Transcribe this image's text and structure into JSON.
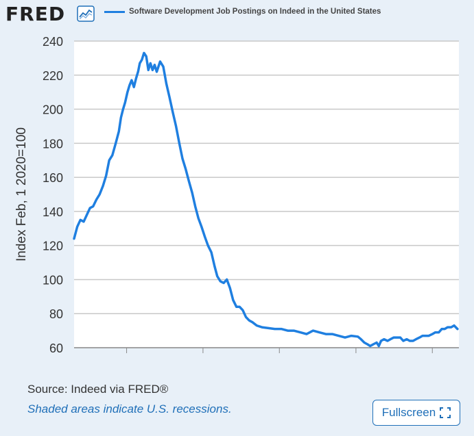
{
  "header": {
    "logo_text": "FRED",
    "graph_icon": "trend-line-icon"
  },
  "colors": {
    "series": "#1f7fe0",
    "background": "#e8f0f8",
    "plot_bg": "#ffffff",
    "grid": "#c8c8c8",
    "link": "#1f6fb8"
  },
  "chart_data": {
    "type": "line",
    "title": "",
    "xlabel": "",
    "ylabel": "Index Feb, 1 2020=100",
    "ylim": [
      60,
      240
    ],
    "yticks": [
      60,
      80,
      100,
      120,
      140,
      160,
      180,
      200,
      220,
      240
    ],
    "xlim": [
      "2021-04-25",
      "2026-05-08"
    ],
    "xticks": [
      "2022",
      "2023",
      "2024",
      "2025",
      "2026"
    ],
    "grid": true,
    "legend_position": "top",
    "series": [
      {
        "name": "Software Development Job Postings on Indeed in the United States",
        "x": [
          "2021-04-25",
          "2021-05-10",
          "2021-05-25",
          "2021-06-10",
          "2021-06-25",
          "2021-07-10",
          "2021-07-25",
          "2021-08-10",
          "2021-08-25",
          "2021-09-10",
          "2021-09-25",
          "2021-10-10",
          "2021-10-25",
          "2021-11-10",
          "2021-11-25",
          "2021-12-05",
          "2021-12-15",
          "2021-12-25",
          "2022-01-05",
          "2022-01-15",
          "2022-01-25",
          "2022-02-05",
          "2022-02-15",
          "2022-02-25",
          "2022-03-05",
          "2022-03-15",
          "2022-03-25",
          "2022-04-05",
          "2022-04-15",
          "2022-04-25",
          "2022-05-05",
          "2022-05-15",
          "2022-05-25",
          "2022-06-10",
          "2022-06-25",
          "2022-07-10",
          "2022-07-25",
          "2022-08-10",
          "2022-08-25",
          "2022-09-10",
          "2022-09-25",
          "2022-10-10",
          "2022-10-25",
          "2022-11-10",
          "2022-11-25",
          "2022-12-10",
          "2022-12-25",
          "2023-01-10",
          "2023-01-25",
          "2023-02-10",
          "2023-02-25",
          "2023-03-10",
          "2023-03-25",
          "2023-04-10",
          "2023-04-25",
          "2023-05-10",
          "2023-05-25",
          "2023-06-10",
          "2023-06-25",
          "2023-07-10",
          "2023-07-25",
          "2023-08-10",
          "2023-08-25",
          "2023-09-15",
          "2023-10-10",
          "2023-11-10",
          "2023-12-10",
          "2024-01-10",
          "2024-02-10",
          "2024-03-10",
          "2024-04-10",
          "2024-05-10",
          "2024-06-10",
          "2024-07-10",
          "2024-08-10",
          "2024-09-10",
          "2024-10-10",
          "2024-11-10",
          "2024-12-10",
          "2025-01-10",
          "2025-01-25",
          "2025-02-10",
          "2025-02-25",
          "2025-03-10",
          "2025-03-25",
          "2025-04-10",
          "2025-04-20",
          "2025-05-01",
          "2025-05-15",
          "2025-06-01",
          "2025-06-15",
          "2025-07-01",
          "2025-07-15",
          "2025-08-01",
          "2025-08-15",
          "2025-09-01",
          "2025-09-15",
          "2025-10-01",
          "2025-10-15",
          "2025-11-01",
          "2025-11-15",
          "2025-12-01",
          "2025-12-15",
          "2026-01-01",
          "2026-01-15",
          "2026-02-01",
          "2026-02-15",
          "2026-03-01",
          "2026-03-15",
          "2026-04-01",
          "2026-04-15",
          "2026-05-01"
        ],
        "values": [
          124,
          131,
          135,
          134,
          138,
          142,
          143,
          147,
          150,
          155,
          161,
          170,
          173,
          180,
          187,
          195,
          200,
          204,
          210,
          214,
          217,
          213,
          218,
          222,
          227,
          229,
          233,
          231,
          223,
          227,
          223,
          226,
          222,
          228,
          225,
          215,
          207,
          198,
          190,
          180,
          171,
          165,
          158,
          151,
          143,
          136,
          131,
          125,
          120,
          116,
          108,
          102,
          99,
          98,
          100,
          95,
          88,
          84,
          84,
          82,
          78,
          76,
          75,
          73,
          72,
          71.5,
          71,
          71,
          70,
          70,
          69,
          68,
          70,
          69,
          68,
          68,
          67,
          66,
          67,
          66.5,
          65,
          63,
          62,
          61,
          62,
          63,
          61,
          64,
          65,
          64,
          65,
          66,
          66,
          66,
          64,
          65,
          64,
          64,
          65,
          66,
          67,
          67,
          67,
          68,
          69,
          69,
          71,
          71,
          72,
          72,
          73,
          71
        ]
      }
    ]
  },
  "footer": {
    "source": "Source: Indeed via FRED®",
    "note": "Shaded areas indicate U.S. recessions.",
    "fullscreen_label": "Fullscreen",
    "fullscreen_icon": "expand-corners-icon"
  }
}
